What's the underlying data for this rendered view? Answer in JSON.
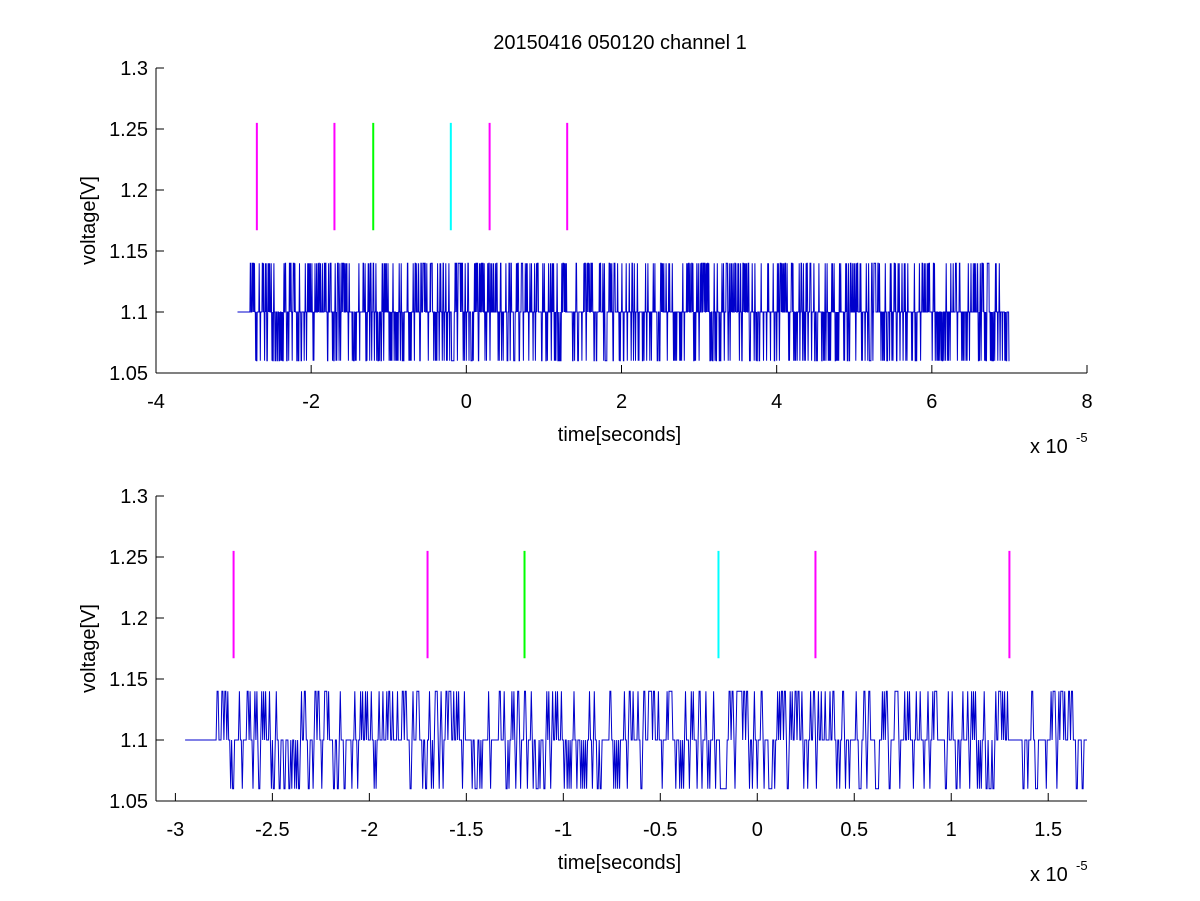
{
  "figure": {
    "title": "20150416 050120 channel 1"
  },
  "chart_data": [
    {
      "type": "line",
      "title": "20150416 050120 channel 1",
      "xlabel": "time[seconds]",
      "ylabel": "voltage[V]",
      "x_exponent": "x 10",
      "x_exponent_power": "-5",
      "xlim": [
        -4e-05,
        8e-05
      ],
      "ylim": [
        1.05,
        1.3
      ],
      "xticks": [
        -4e-05,
        -2e-05,
        0,
        2e-05,
        4e-05,
        6e-05,
        8e-05
      ],
      "xtick_labels": [
        "-4",
        "-2",
        "0",
        "2",
        "4",
        "6",
        "8"
      ],
      "yticks": [
        1.05,
        1.1,
        1.15,
        1.2,
        1.25,
        1.3
      ],
      "ytick_labels": [
        "1.05",
        "1.1",
        "1.15",
        "1.2",
        "1.25",
        "1.3"
      ],
      "grid": false,
      "signal": {
        "color": "#0000cc",
        "x_start": -2.95e-05,
        "x_end": 7e-05,
        "baseline": 1.1,
        "levels": [
          1.06,
          1.1,
          1.14
        ],
        "description_values": "noisy quantized voltage trace switching between 1.06, 1.1 and 1.14 V"
      },
      "markers": [
        {
          "x": -2.7e-05,
          "y0": 1.167,
          "y1": 1.255,
          "color": "#ff00ff"
        },
        {
          "x": -1.7e-05,
          "y0": 1.167,
          "y1": 1.255,
          "color": "#ff00ff"
        },
        {
          "x": -1.2e-05,
          "y0": 1.167,
          "y1": 1.255,
          "color": "#00ff00"
        },
        {
          "x": -2e-06,
          "y0": 1.167,
          "y1": 1.255,
          "color": "#00ffff"
        },
        {
          "x": 3e-06,
          "y0": 1.167,
          "y1": 1.255,
          "color": "#ff00ff"
        },
        {
          "x": 1.3e-05,
          "y0": 1.167,
          "y1": 1.255,
          "color": "#ff00ff"
        }
      ]
    },
    {
      "type": "line",
      "title": "",
      "xlabel": "time[seconds]",
      "ylabel": "voltage[V]",
      "x_exponent": "x 10",
      "x_exponent_power": "-5",
      "xlim": [
        -3.1e-05,
        1.7e-05
      ],
      "ylim": [
        1.05,
        1.3
      ],
      "xticks": [
        -3e-05,
        -2.5e-05,
        -2e-05,
        -1.5e-05,
        -1e-05,
        -5e-06,
        0,
        5e-06,
        1e-05,
        1.5e-05
      ],
      "xtick_labels": [
        "-3",
        "-2.5",
        "-2",
        "-1.5",
        "-1",
        "-0.5",
        "0",
        "0.5",
        "1",
        "1.5"
      ],
      "yticks": [
        1.05,
        1.1,
        1.15,
        1.2,
        1.25,
        1.3
      ],
      "ytick_labels": [
        "1.05",
        "1.1",
        "1.15",
        "1.2",
        "1.25",
        "1.3"
      ],
      "grid": false,
      "signal": {
        "color": "#0000cc",
        "x_start": -2.95e-05,
        "x_end": 1.7e-05,
        "baseline": 1.1,
        "levels": [
          1.06,
          1.1,
          1.14
        ]
      },
      "markers": [
        {
          "x": -2.7e-05,
          "y0": 1.167,
          "y1": 1.255,
          "color": "#ff00ff"
        },
        {
          "x": -1.7e-05,
          "y0": 1.167,
          "y1": 1.255,
          "color": "#ff00ff"
        },
        {
          "x": -1.2e-05,
          "y0": 1.167,
          "y1": 1.255,
          "color": "#00ff00"
        },
        {
          "x": -2e-06,
          "y0": 1.167,
          "y1": 1.255,
          "color": "#00ffff"
        },
        {
          "x": 3e-06,
          "y0": 1.167,
          "y1": 1.255,
          "color": "#ff00ff"
        },
        {
          "x": 1.3e-05,
          "y0": 1.167,
          "y1": 1.255,
          "color": "#ff00ff"
        }
      ]
    }
  ]
}
